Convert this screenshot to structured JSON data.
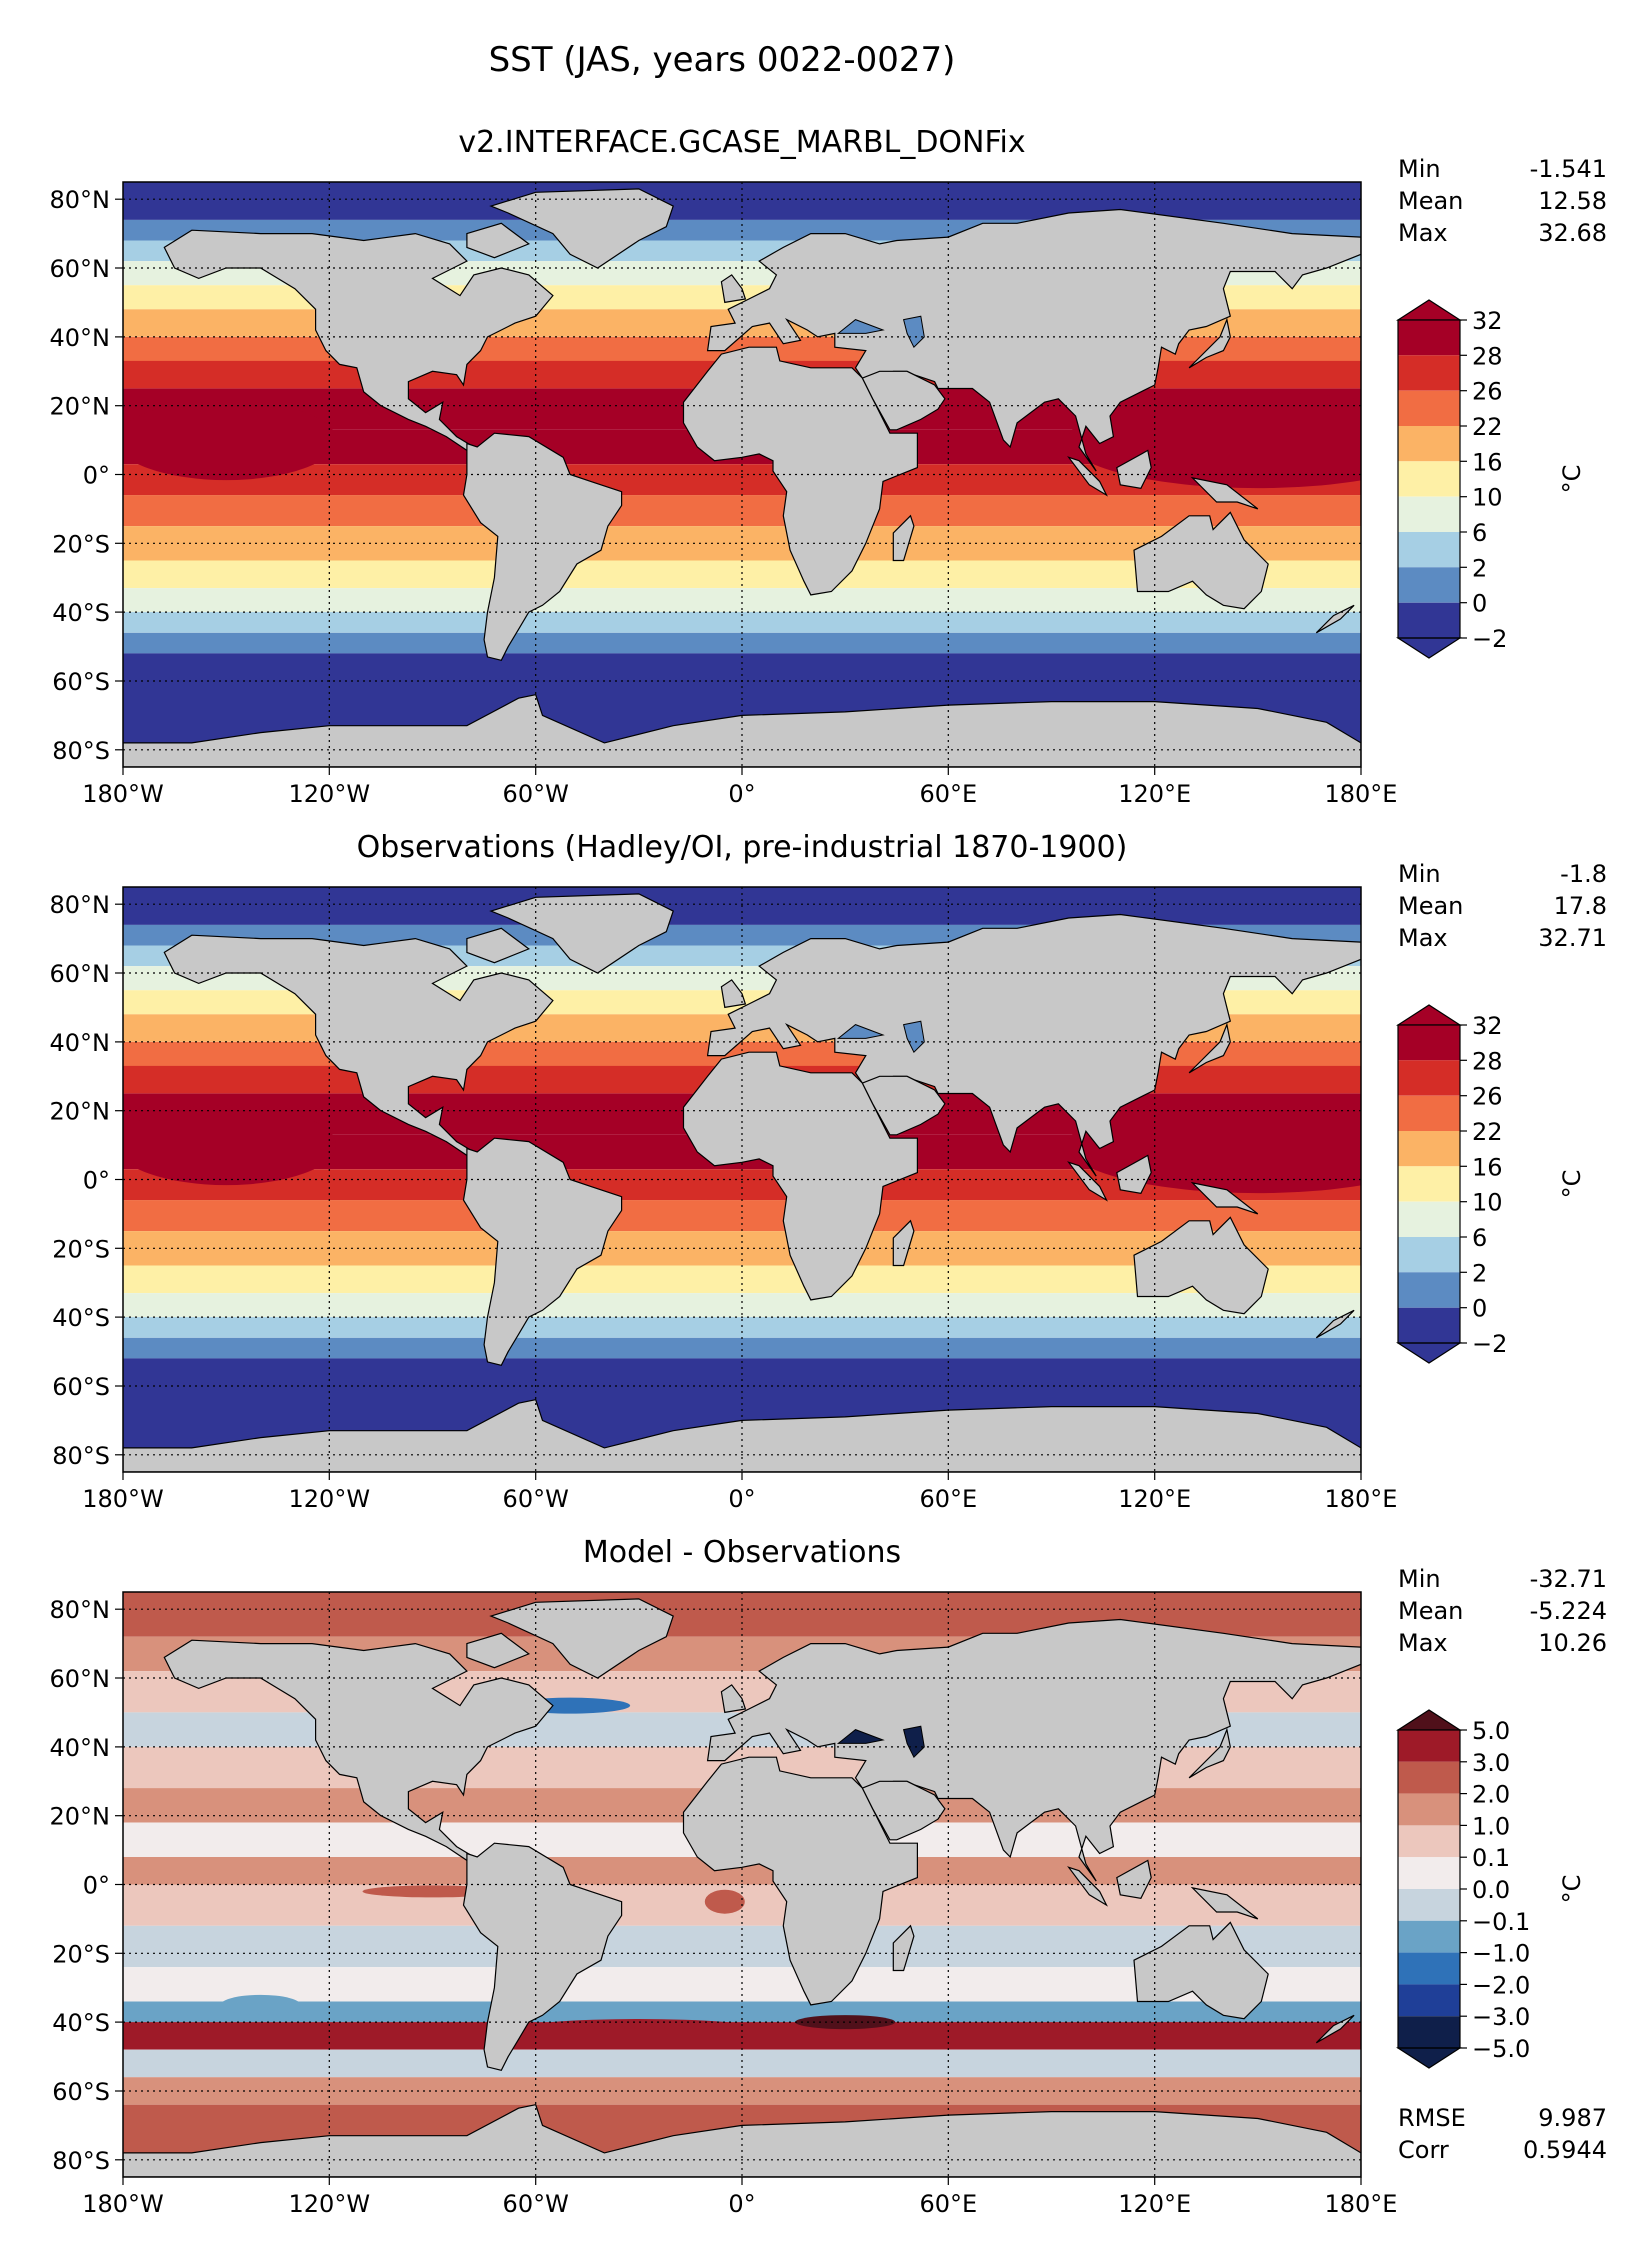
{
  "figure": {
    "title": "SST (JAS, years 0022-0027)"
  },
  "colors": {
    "land": "#c8c8c8",
    "abs_levels": [
      "#313695",
      "#5c8bc2",
      "#a6cfe4",
      "#e6f2df",
      "#fef0a6",
      "#fbb365",
      "#f16d43",
      "#d52d27",
      "#a50026"
    ],
    "diff_levels": [
      "#0f1f4a",
      "#1f3f98",
      "#2f72b8",
      "#6aa3c6",
      "#c7d4de",
      "#f2ecec",
      "#ecc7bd",
      "#d8917c",
      "#bf5a4c",
      "#9e1a28",
      "#50101a"
    ]
  },
  "panels": [
    {
      "title": "v2.INTERFACE.GCASE_MARBL_DONFix",
      "stats": [
        {
          "label": "Min",
          "value": "-1.541"
        },
        {
          "label": "Mean",
          "value": "12.58"
        },
        {
          "label": "Max",
          "value": "32.68"
        }
      ],
      "colorbar": {
        "ticks": [
          "32",
          "28",
          "26",
          "22",
          "16",
          "10",
          "6",
          "2",
          "0",
          "−2"
        ],
        "unit": "°C"
      }
    },
    {
      "title": "Observations (Hadley/OI, pre-industrial 1870-1900)",
      "stats": [
        {
          "label": "Min",
          "value": "-1.8"
        },
        {
          "label": "Mean",
          "value": "17.8"
        },
        {
          "label": "Max",
          "value": "32.71"
        }
      ],
      "colorbar": {
        "ticks": [
          "32",
          "28",
          "26",
          "22",
          "16",
          "10",
          "6",
          "2",
          "0",
          "−2"
        ],
        "unit": "°C"
      }
    },
    {
      "title": "Model - Observations",
      "stats": [
        {
          "label": "Min",
          "value": "-32.71"
        },
        {
          "label": "Mean",
          "value": "-5.224"
        },
        {
          "label": "Max",
          "value": "10.26"
        }
      ],
      "colorbar": {
        "ticks": [
          "5.0",
          "3.0",
          "2.0",
          "1.0",
          "0.1",
          "0.0",
          "−0.1",
          "−1.0",
          "−2.0",
          "−3.0",
          "−5.0"
        ],
        "unit": "°C"
      },
      "extra_stats": [
        {
          "label": "RMSE",
          "value": "9.987"
        },
        {
          "label": "Corr",
          "value": "0.5944"
        }
      ]
    }
  ],
  "chart_data": {
    "type": "heatmap",
    "variable": "SST",
    "title": "SST (JAS, years 0022-0027)",
    "x_ticks": [
      "180°W",
      "120°W",
      "60°W",
      "0°",
      "60°E",
      "120°E",
      "180°E"
    ],
    "y_ticks": [
      "80°N",
      "60°N",
      "40°N",
      "20°N",
      "0°",
      "20°S",
      "40°S",
      "60°S",
      "80°S"
    ],
    "x_values": [
      -180,
      -120,
      -60,
      0,
      60,
      120,
      180
    ],
    "y_values": [
      80,
      60,
      40,
      20,
      0,
      -20,
      -40,
      -60,
      -80
    ],
    "xlim": [
      -180,
      180
    ],
    "ylim": [
      -85,
      85
    ],
    "abs_levels": [
      -2,
      0,
      2,
      6,
      10,
      16,
      22,
      26,
      28,
      32
    ],
    "diff_levels": [
      -5,
      -3,
      -2,
      -1,
      -0.1,
      0,
      0.1,
      1,
      2,
      3,
      5
    ],
    "units": "°C"
  }
}
